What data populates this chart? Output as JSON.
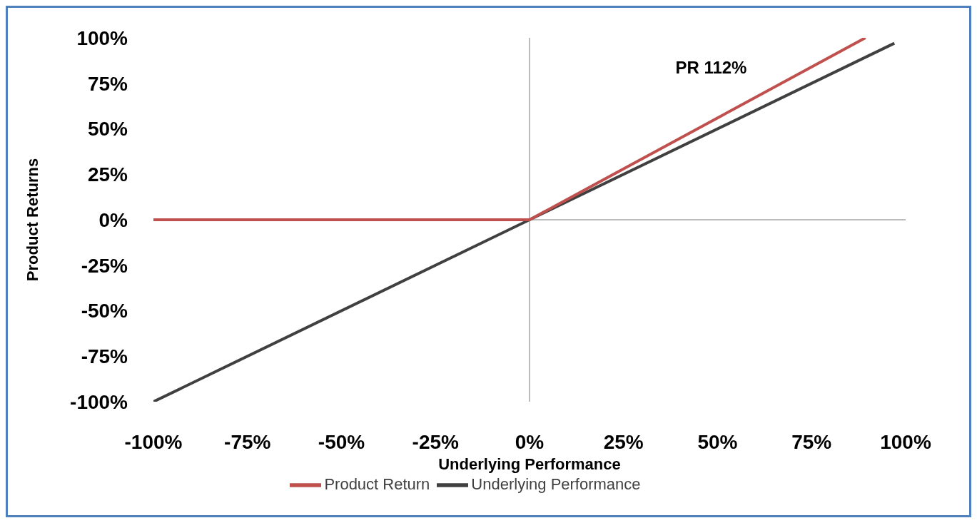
{
  "chart_data": {
    "type": "line",
    "xlabel": "Underlying Performance",
    "ylabel": "Product Returns",
    "xlim": [
      -100,
      100
    ],
    "xticks": [
      {
        "value": -100,
        "label": "-100%"
      },
      {
        "value": -75,
        "label": "-75%"
      },
      {
        "value": -50,
        "label": "-50%"
      },
      {
        "value": -25,
        "label": "-25%"
      },
      {
        "value": 0,
        "label": "0%"
      },
      {
        "value": 25,
        "label": "25%"
      },
      {
        "value": 50,
        "label": "50%"
      },
      {
        "value": 75,
        "label": "75%"
      },
      {
        "value": 100,
        "label": "100%"
      }
    ],
    "ylim": [
      -100,
      100
    ],
    "yticks": [
      {
        "value": -100,
        "label": "-100%"
      },
      {
        "value": -75,
        "label": "-75%"
      },
      {
        "value": -50,
        "label": "-50%"
      },
      {
        "value": -25,
        "label": "-25%"
      },
      {
        "value": 0,
        "label": "0%"
      },
      {
        "value": 25,
        "label": "25%"
      },
      {
        "value": 50,
        "label": "50%"
      },
      {
        "value": 75,
        "label": "75%"
      },
      {
        "value": 100,
        "label": "100%"
      }
    ],
    "series": [
      {
        "name": "Underlying Performance",
        "color": "#404040",
        "x": [
          -100,
          97
        ],
        "values": [
          -100,
          97
        ]
      },
      {
        "name": "Product Return",
        "color": "#c0504d",
        "x": [
          -100,
          0,
          89.3
        ],
        "values": [
          0,
          0,
          100
        ]
      }
    ],
    "annotations": [
      "PR 112%"
    ],
    "legend": "bottom",
    "marker": "none"
  }
}
